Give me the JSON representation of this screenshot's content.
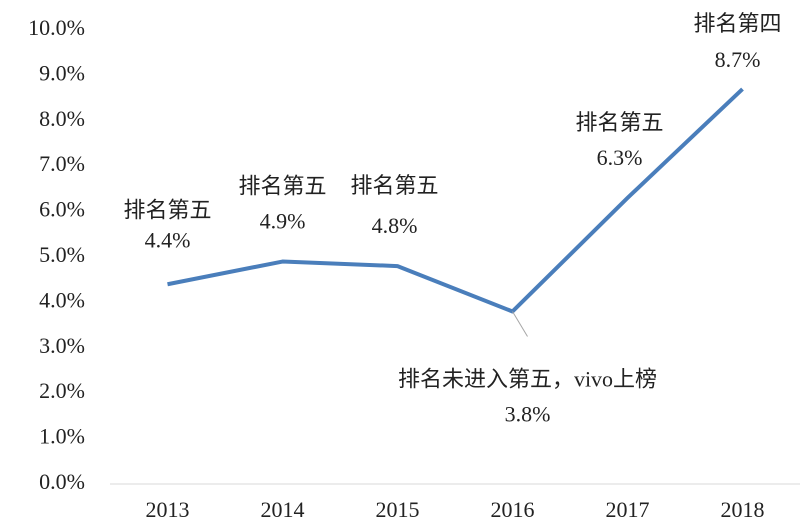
{
  "chart_data": {
    "type": "line",
    "categories": [
      "2013",
      "2014",
      "2015",
      "2016",
      "2017",
      "2018"
    ],
    "series": [
      {
        "color": "#4a7ebb",
        "values": [
          4.4,
          4.9,
          4.8,
          3.8,
          6.3,
          8.7
        ],
        "value_labels": [
          "4.4%",
          "4.9%",
          "4.8%",
          "3.8%",
          "6.3%",
          "8.7%"
        ],
        "annotations": [
          "排名第五",
          "排名第五",
          "排名第五",
          "排名未进入第五，vivo上榜",
          "排名第五",
          "排名第四"
        ]
      }
    ],
    "ylim": [
      0,
      10
    ],
    "yticks": [
      {
        "value": 0,
        "label": "0.0%"
      },
      {
        "value": 1,
        "label": "1.0%"
      },
      {
        "value": 2,
        "label": "2.0%"
      },
      {
        "value": 3,
        "label": "3.0%"
      },
      {
        "value": 4,
        "label": "4.0%"
      },
      {
        "value": 5,
        "label": "5.0%"
      },
      {
        "value": 6,
        "label": "6.0%"
      },
      {
        "value": 7,
        "label": "7.0%"
      },
      {
        "value": 8,
        "label": "8.0%"
      },
      {
        "value": 9,
        "label": "9.0%"
      },
      {
        "value": 10,
        "label": "10.0%"
      }
    ],
    "grid": false
  }
}
